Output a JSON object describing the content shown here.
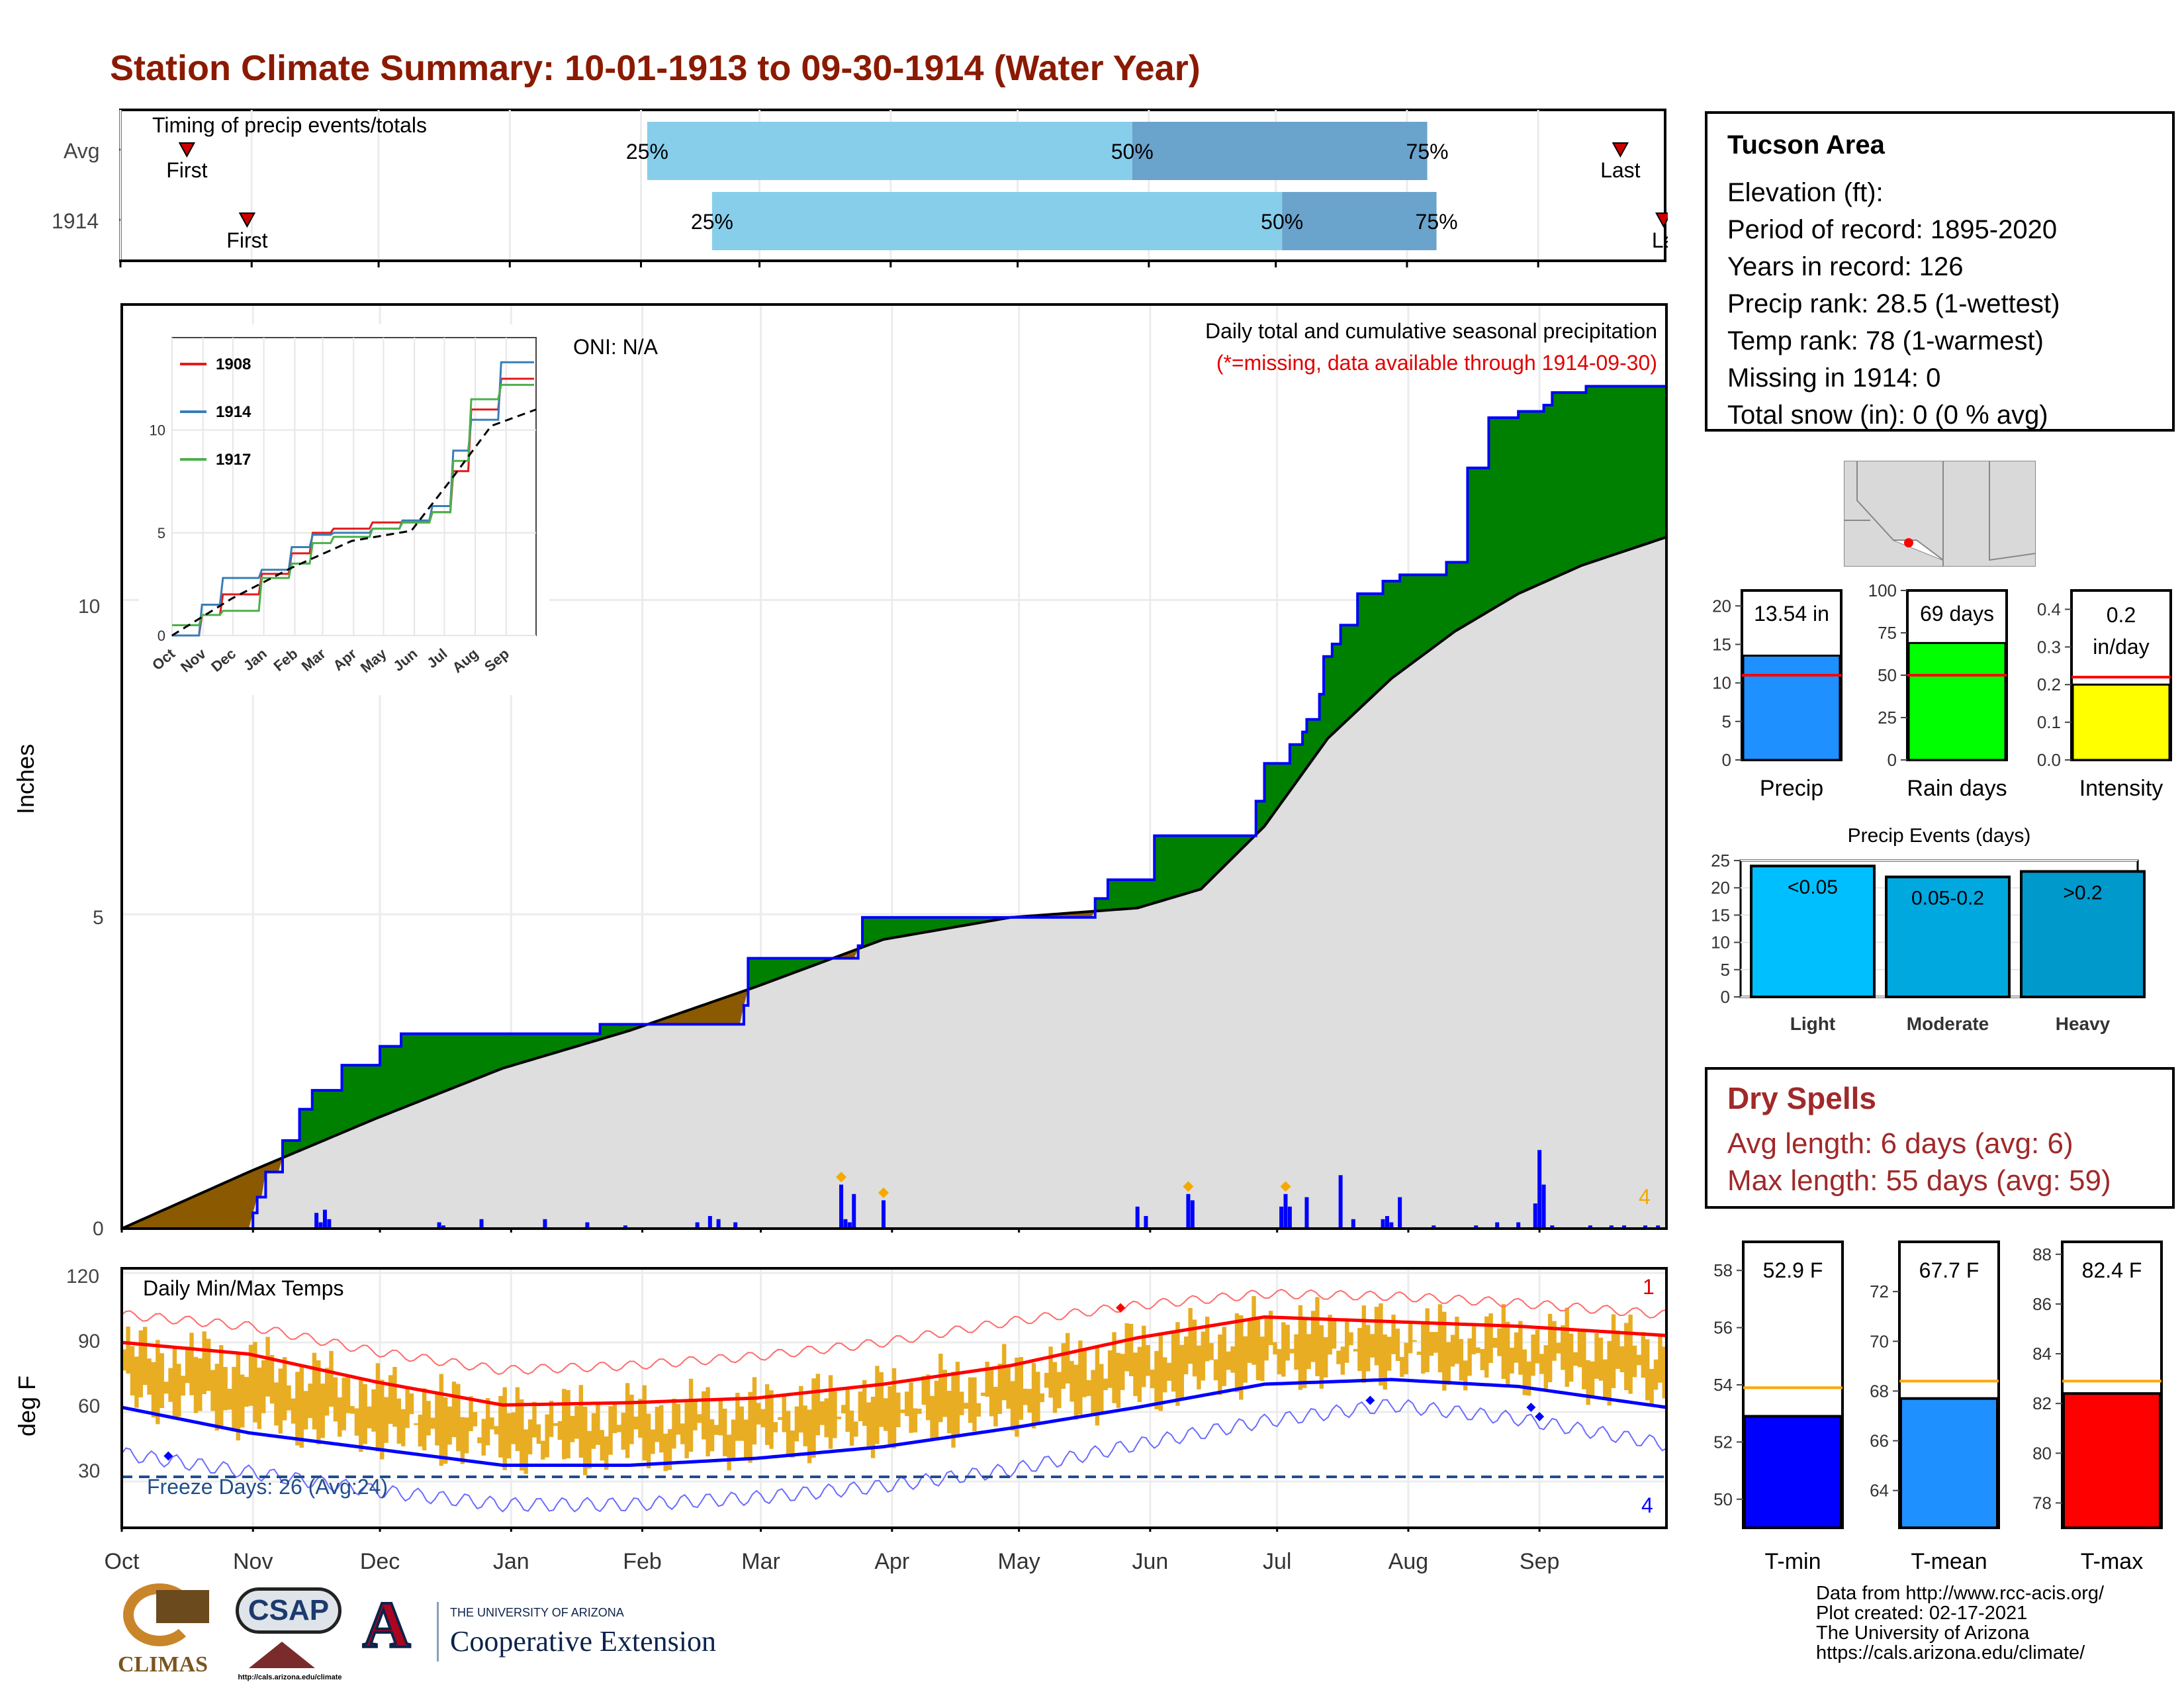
{
  "title": "Station Climate Summary: 10-01-1913 to 09-30-1914 (Water Year)",
  "months": [
    "Oct",
    "Nov",
    "Dec",
    "Jan",
    "Feb",
    "Mar",
    "Apr",
    "May",
    "Jun",
    "Jul",
    "Aug",
    "Sep"
  ],
  "colors": {
    "title": "#8b1a00",
    "wet": "#008000",
    "dry": "#8b5a00",
    "avg_fill": "#dedede",
    "obs_line": "#0000ff",
    "bar_q1": "#87ceeb",
    "bar_q2": "#6aa3cc",
    "tmax": "#ff0000",
    "tmin": "#0000ff",
    "range": "#e8ad22",
    "dry_spell": "#a0292a"
  },
  "timing": {
    "label": "Timing of precip events/totals",
    "rows": [
      {
        "name": "Avg",
        "first_label": "First",
        "last_label": "Last",
        "p25": "25%",
        "p50": "50%",
        "p75": "75%",
        "first_frac": 0.043,
        "p25_frac": 0.341,
        "p50_frac": 0.655,
        "p75_frac": 0.846,
        "last_frac": 0.971
      },
      {
        "name": "1914",
        "first_label": "First",
        "last_label": "La",
        "p25": "25%",
        "p50": "50%",
        "p75": "75%",
        "first_frac": 0.082,
        "p25_frac": 0.383,
        "p50_frac": 0.752,
        "p75_frac": 0.852,
        "last_frac": 0.999
      }
    ]
  },
  "precip_panel": {
    "ylabel": "Inches",
    "caption": "Daily total and cumulative seasonal precipitation",
    "missing_note": "(*=missing, data available through 1914-09-30)",
    "oni": "ONI: N/A",
    "corner_count": "4",
    "yticks": [
      "0",
      "5",
      "10"
    ]
  },
  "chart_data": [
    {
      "type": "area",
      "title": "Daily total and cumulative seasonal precipitation",
      "ylabel": "Inches",
      "ylim": [
        0,
        14.7
      ],
      "x_unit": "day of water year (Oct 1 = 0)",
      "observed_cumulative": {
        "x": [
          0,
          30,
          31,
          32,
          34,
          38,
          42,
          45,
          52,
          61,
          66,
          71,
          87,
          100,
          113,
          126,
          147,
          148,
          174,
          175,
          228,
          230,
          233,
          244,
          264,
          268,
          270,
          276,
          279,
          280,
          283,
          284,
          286,
          288,
          292,
          298,
          300,
          302,
          313,
          318,
          323,
          330,
          336,
          338,
          346,
          365
        ],
        "y": [
          0,
          0,
          0.25,
          0.5,
          0.9,
          1.4,
          1.9,
          2.2,
          2.6,
          2.9,
          3.1,
          3.1,
          3.1,
          3.1,
          3.25,
          3.25,
          3.55,
          4.3,
          4.5,
          4.95,
          4.95,
          5.25,
          5.55,
          6.25,
          6.25,
          6.8,
          7.4,
          7.7,
          7.9,
          8.1,
          8.5,
          9.1,
          9.3,
          9.6,
          10.1,
          10.3,
          10.3,
          10.4,
          10.6,
          12.1,
          12.9,
          13.0,
          13.1,
          13.3,
          13.4,
          13.54
        ]
      },
      "average_cumulative": {
        "x": [
          0,
          30,
          60,
          90,
          120,
          150,
          180,
          210,
          240,
          255,
          270,
          285,
          300,
          315,
          330,
          345,
          365
        ],
        "y": [
          0,
          0.9,
          1.75,
          2.55,
          3.15,
          3.85,
          4.6,
          4.95,
          5.1,
          5.4,
          6.4,
          7.8,
          8.75,
          9.5,
          10.1,
          10.55,
          11.0
        ]
      },
      "daily": {
        "x": [
          46,
          47,
          48,
          49,
          75,
          76,
          85,
          100,
          110,
          119,
          136,
          139,
          141,
          145,
          170,
          171,
          172,
          173,
          180,
          240,
          242,
          252,
          253,
          274,
          275,
          276,
          280,
          288,
          291,
          298,
          299,
          300,
          302,
          310,
          320,
          325,
          330,
          334,
          335,
          336,
          338,
          347,
          352,
          355,
          360,
          363
        ],
        "y": [
          0.25,
          0.1,
          0.3,
          0.15,
          0.1,
          0.05,
          0.15,
          0.15,
          0.1,
          0.05,
          0.1,
          0.2,
          0.15,
          0.1,
          0.7,
          0.15,
          0.1,
          0.55,
          0.45,
          0.35,
          0.2,
          0.55,
          0.45,
          0.35,
          0.55,
          0.35,
          0.5,
          0.85,
          0.15,
          0.15,
          0.2,
          0.1,
          0.5,
          0.05,
          0.05,
          0.1,
          0.1,
          0.4,
          1.25,
          0.7,
          0.05,
          0.05,
          0.05,
          0.05,
          0.05,
          0.05
        ]
      }
    },
    {
      "type": "line",
      "title": "Daily Min/Max Temps",
      "ylabel": "deg F",
      "ylim": [
        10,
        122
      ],
      "months": [
        "Oct",
        "Nov",
        "Dec",
        "Jan",
        "Feb",
        "Mar",
        "Apr",
        "May",
        "Jun",
        "Jul",
        "Aug",
        "Sep"
      ],
      "series": [
        {
          "x": [
            0,
            30,
            60,
            90,
            120,
            150,
            180,
            210,
            240,
            270,
            300,
            330,
            365
          ],
          "y": [
            90,
            85,
            73,
            63,
            64,
            66,
            72,
            80,
            92,
            101,
            99,
            97,
            93
          ]
        },
        {
          "x": [
            0,
            30,
            60,
            90,
            120,
            150,
            180,
            210,
            240,
            270,
            300,
            330,
            365
          ],
          "y": [
            62,
            51,
            44,
            37,
            37,
            40,
            45,
            53,
            62,
            72,
            74,
            71,
            62
          ]
        },
        {
          "x": [
            0,
            30,
            60,
            90,
            120,
            150,
            180,
            210,
            240,
            270,
            300,
            330,
            365
          ],
          "y": [
            102,
            97,
            86,
            78,
            80,
            84,
            90,
            99,
            106,
            111,
            110,
            107,
            102
          ]
        },
        {
          "x": [
            0,
            30,
            60,
            90,
            120,
            150,
            180,
            210,
            240,
            270,
            300,
            330,
            365
          ],
          "y": [
            42,
            34,
            26,
            20,
            20,
            23,
            28,
            35,
            46,
            56,
            63,
            57,
            46
          ]
        }
      ],
      "freeze_line": 32
    },
    {
      "type": "line",
      "title": "inset cumulative comparison",
      "xlabels": [
        "Oct",
        "Nov",
        "Dec",
        "Jan",
        "Feb",
        "Mar",
        "Apr",
        "May",
        "Jun",
        "Jul",
        "Aug",
        "Sep"
      ],
      "yticks": [
        "0",
        "5",
        "10"
      ],
      "series": [
        {
          "name": "1908",
          "x": [
            0,
            30,
            50,
            90,
            120,
            140,
            160,
            200,
            230,
            260,
            280,
            300,
            330,
            365
          ],
          "y": [
            0,
            1,
            2,
            3,
            4,
            5,
            5.2,
            5.5,
            5.5,
            6,
            8,
            11,
            12.5,
            13
          ]
        },
        {
          "name": "1914",
          "x": [
            0,
            30,
            50,
            90,
            120,
            140,
            160,
            200,
            230,
            260,
            280,
            300,
            330,
            365
          ],
          "y": [
            0,
            1.5,
            2.8,
            3.2,
            4.3,
            4.9,
            5,
            5.2,
            5.6,
            6.3,
            9,
            10.5,
            13.3,
            13.54
          ]
        },
        {
          "name": "1917",
          "x": [
            0,
            30,
            50,
            90,
            120,
            140,
            160,
            200,
            230,
            260,
            280,
            300,
            330,
            365
          ],
          "y": [
            0.5,
            1,
            1.2,
            2.8,
            3.5,
            4.5,
            4.8,
            5.2,
            5.5,
            6,
            8.5,
            11.5,
            12.2,
            12.5
          ]
        }
      ],
      "average": {
        "x": [
          0,
          60,
          120,
          180,
          240,
          280,
          320,
          365
        ],
        "y": [
          0,
          1.8,
          3.3,
          4.6,
          5.1,
          7.6,
          10.2,
          11
        ]
      }
    },
    {
      "type": "bar",
      "title": "Precip summary",
      "categories": [
        "Precip",
        "Rain days",
        "Intensity"
      ],
      "values": [
        13.54,
        69,
        0.2
      ],
      "labels": [
        "13.54 in",
        "69 days",
        "0.2 in/day"
      ],
      "averages": [
        11,
        50,
        0.22
      ],
      "ylims": [
        [
          0,
          22
        ],
        [
          0,
          100
        ],
        [
          0,
          0.45
        ]
      ],
      "yticks": [
        [
          "0",
          "5",
          "10",
          "15",
          "20"
        ],
        [
          "0",
          "25",
          "50",
          "75",
          "100"
        ],
        [
          "0.0",
          "0.1",
          "0.2",
          "0.3",
          "0.4"
        ]
      ]
    },
    {
      "type": "bar",
      "title": "Precip Events (days)",
      "categories": [
        "Light",
        "Moderate",
        "Heavy"
      ],
      "bar_labels": [
        "<0.05",
        "0.05-0.2",
        ">0.2"
      ],
      "values": [
        24,
        22,
        23
      ],
      "ylim": [
        0,
        25
      ],
      "yticks": [
        "0",
        "5",
        "10",
        "15",
        "20",
        "25"
      ]
    },
    {
      "type": "bar",
      "title": "Temperature summary",
      "categories": [
        "T-min",
        "T-mean",
        "T-max"
      ],
      "values": [
        52.9,
        67.7,
        82.4
      ],
      "labels": [
        "52.9 F",
        "67.7 F",
        "82.4 F"
      ],
      "averages": [
        53.9,
        68.4,
        82.9
      ],
      "yticks": [
        [
          "50",
          "52",
          "54",
          "56",
          "58"
        ],
        [
          "64",
          "66",
          "68",
          "70",
          "72"
        ],
        [
          "78",
          "80",
          "82",
          "84",
          "86",
          "88"
        ]
      ]
    }
  ],
  "temp_panel": {
    "ylabel": "deg F",
    "caption": "Daily Min/Max Temps",
    "freeze_text": "Freeze Days: 26 (Avg:24)",
    "yticks": [
      "30",
      "60",
      "90",
      "120"
    ],
    "count_top": "1",
    "count_bottom": "4"
  },
  "info": {
    "name": "Tucson Area",
    "lines": [
      "Elevation (ft):",
      "Period of record: 1895-2020",
      "Years in record: 126",
      "Precip rank: 28.5 (1-wettest)",
      "Temp rank: 78 (1-warmest)",
      "Missing in 1914: 0",
      "Total snow (in): 0 (0 % avg)"
    ]
  },
  "dry_spells": {
    "title": "Dry Spells",
    "avg": "Avg length: 6 days (avg: 6)",
    "max": "Max length: 55 days (avg: 59)"
  },
  "credits": [
    "Data from http://www.rcc-acis.org/",
    "Plot created: 02-17-2021",
    "The University of Arizona",
    "https://cals.arizona.edu/climate/"
  ],
  "logos": {
    "climas": "CLIMAS",
    "csap": "CSAP",
    "csap_url": "http://cals.arizona.edu/climate",
    "ua_small": "THE UNIVERSITY OF ARIZONA",
    "ua_big": "Cooperative Extension"
  }
}
